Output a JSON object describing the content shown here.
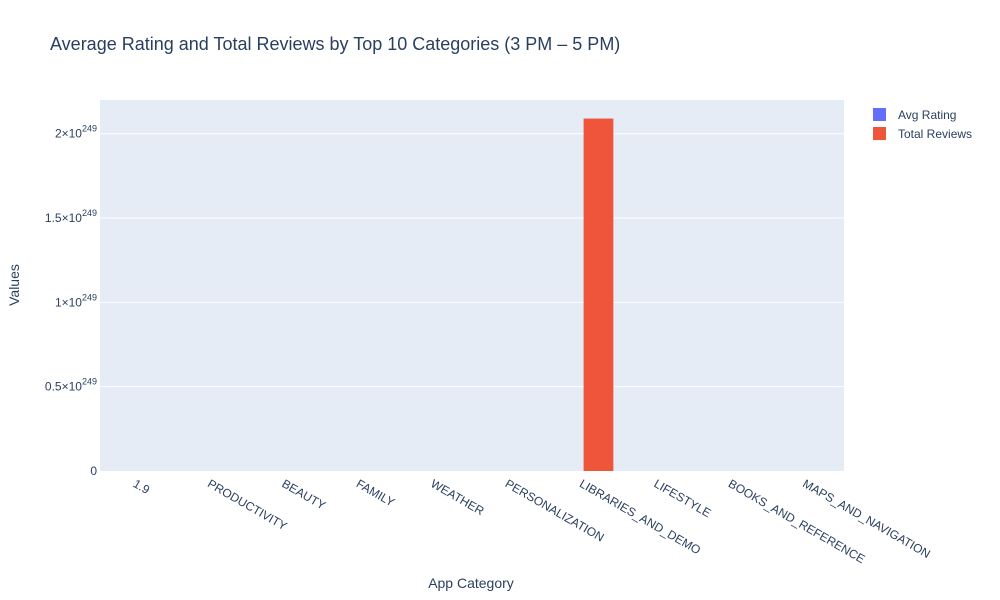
{
  "chart_data": {
    "type": "bar",
    "title": "Average Rating and Total Reviews by Top 10 Categories (3 PM – 5 PM)",
    "xlabel": "App Category",
    "ylabel": "Values",
    "categories": [
      "1.9",
      "PRODUCTIVITY",
      "BEAUTY",
      "FAMILY",
      "WEATHER",
      "PERSONALIZATION",
      "LIBRARIES_AND_DEMO",
      "LIFESTYLE",
      "BOOKS_AND_REFERENCE",
      "MAPS_AND_NAVIGATION"
    ],
    "series": [
      {
        "name": "Avg Rating",
        "color": "#636efa",
        "values": [
          0,
          0,
          0,
          0,
          0,
          0,
          0,
          0,
          0,
          0
        ]
      },
      {
        "name": "Total Reviews",
        "color": "#ef553b",
        "values": [
          0,
          0,
          0,
          0,
          0,
          0,
          2.09,
          0,
          0,
          0
        ]
      }
    ],
    "value_scale_note": "values expressed in units of 10^249",
    "ylim": [
      0,
      2.2
    ],
    "yticks": [
      {
        "value": 0,
        "mantissa": "0",
        "exp": ""
      },
      {
        "value": 0.5,
        "mantissa": "0.5×10",
        "exp": "249"
      },
      {
        "value": 1,
        "mantissa": "1×10",
        "exp": "249"
      },
      {
        "value": 1.5,
        "mantissa": "1.5×10",
        "exp": "249"
      },
      {
        "value": 2,
        "mantissa": "2×10",
        "exp": "249"
      }
    ],
    "grid": true,
    "legend_position": "top-right",
    "plot_bg": "#e5ecf6"
  }
}
